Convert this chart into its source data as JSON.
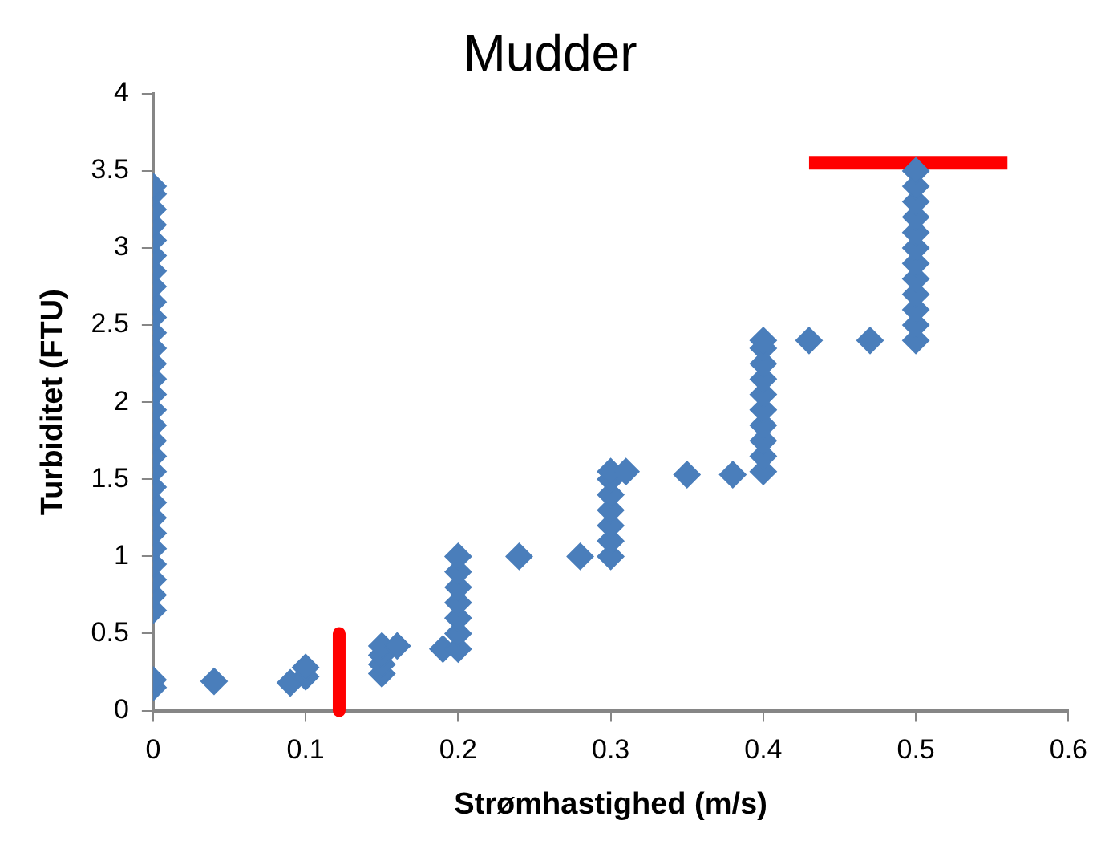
{
  "chart_data": {
    "type": "scatter",
    "title": "Mudder",
    "xlabel": "Strømhastighed (m/s)",
    "ylabel": "Turbiditet (FTU)",
    "xlim": [
      0,
      0.6
    ],
    "xticks": [
      0,
      0.1,
      0.2,
      0.3,
      0.4,
      0.5,
      0.6
    ],
    "ylim": [
      0,
      4
    ],
    "yticks": [
      0,
      0.5,
      1,
      1.5,
      2,
      2.5,
      3,
      3.5,
      4
    ],
    "grid": false,
    "legend": false,
    "marker": "diamond",
    "series": [
      {
        "color": "#4a7ebb",
        "x": [
          0,
          0,
          0,
          0,
          0,
          0,
          0,
          0,
          0,
          0,
          0,
          0,
          0,
          0,
          0,
          0,
          0,
          0,
          0,
          0,
          0,
          0,
          0,
          0,
          0,
          0,
          0,
          0,
          0,
          0,
          0,
          0.04,
          0.09,
          0.1,
          0.1,
          0.15,
          0.15,
          0.15,
          0.15,
          0.16,
          0.19,
          0.2,
          0.2,
          0.2,
          0.2,
          0.2,
          0.2,
          0.2,
          0.24,
          0.28,
          0.3,
          0.3,
          0.3,
          0.3,
          0.3,
          0.3,
          0.3,
          0.31,
          0.35,
          0.38,
          0.4,
          0.4,
          0.4,
          0.4,
          0.4,
          0.4,
          0.4,
          0.4,
          0.4,
          0.4,
          0.43,
          0.47,
          0.5,
          0.5,
          0.5,
          0.5,
          0.5,
          0.5,
          0.5,
          0.5,
          0.5,
          0.5,
          0.5,
          0.5
        ],
        "values": [
          0.15,
          0.2,
          0.65,
          0.75,
          0.85,
          0.95,
          1.05,
          1.15,
          1.25,
          1.35,
          1.45,
          1.55,
          1.65,
          1.75,
          1.85,
          1.95,
          2.05,
          2.15,
          2.25,
          2.35,
          2.45,
          2.55,
          2.65,
          2.75,
          2.85,
          2.95,
          3.05,
          3.15,
          3.25,
          3.35,
          3.4,
          0.19,
          0.18,
          0.22,
          0.28,
          0.24,
          0.3,
          0.36,
          0.42,
          0.42,
          0.4,
          0.4,
          0.5,
          0.6,
          0.7,
          0.8,
          0.9,
          1.0,
          1.0,
          1.0,
          1.0,
          1.1,
          1.2,
          1.3,
          1.4,
          1.5,
          1.55,
          1.55,
          1.53,
          1.53,
          1.55,
          1.65,
          1.75,
          1.85,
          1.95,
          2.05,
          2.15,
          2.25,
          2.35,
          2.4,
          2.4,
          2.4,
          2.4,
          2.5,
          2.6,
          2.7,
          2.8,
          2.9,
          3.0,
          3.1,
          3.2,
          3.3,
          3.4,
          3.5
        ]
      },
      {
        "type": "line",
        "marker": "none",
        "color": "#ff0000",
        "x": [
          0.43,
          0.56
        ],
        "values": [
          3.55,
          3.55
        ]
      },
      {
        "type": "line",
        "marker": "none",
        "color": "#ff0000",
        "x": [
          0.122,
          0.122
        ],
        "values": [
          0.5,
          0
        ]
      }
    ]
  }
}
